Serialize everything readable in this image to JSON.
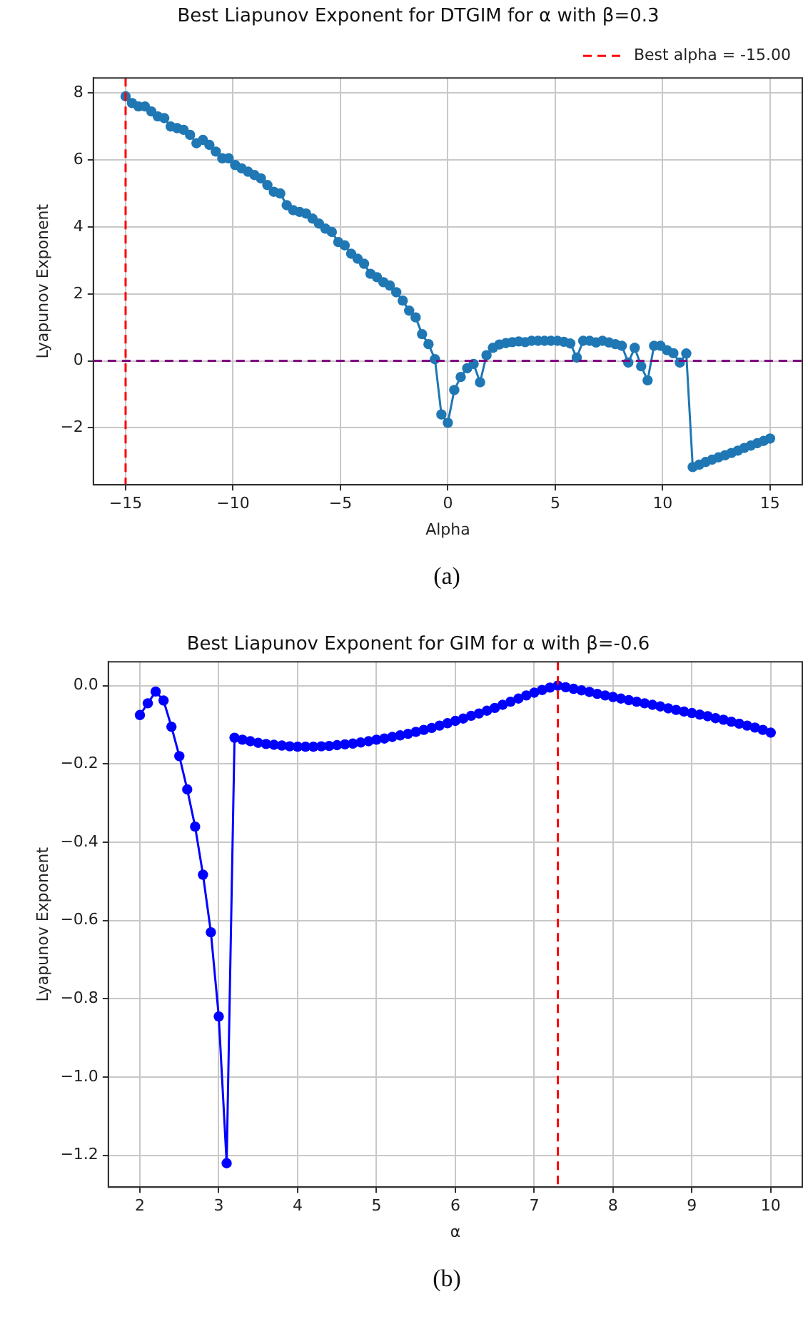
{
  "chart_data": [
    {
      "type": "line",
      "title": "Best Liapunov Exponent for DTGIM for α with β=0.3",
      "xlabel": "Alpha",
      "ylabel": "Lyapunov Exponent",
      "annotations": [
        "(a)"
      ],
      "x": [
        -15,
        -14.7,
        -14.4,
        -14.1,
        -13.8,
        -13.5,
        -13.2,
        -12.9,
        -12.6,
        -12.3,
        -12,
        -11.7,
        -11.4,
        -11.1,
        -10.8,
        -10.5,
        -10.2,
        -9.9,
        -9.6,
        -9.3,
        -9,
        -8.7,
        -8.4,
        -8.1,
        -7.8,
        -7.5,
        -7.2,
        -6.9,
        -6.6,
        -6.3,
        -6,
        -5.7,
        -5.4,
        -5.1,
        -4.8,
        -4.5,
        -4.2,
        -3.9,
        -3.6,
        -3.3,
        -3,
        -2.7,
        -2.4,
        -2.1,
        -1.8,
        -1.5,
        -1.2,
        -0.9,
        -0.6,
        -0.3,
        0,
        0.3,
        0.6,
        0.9,
        1.2,
        1.5,
        1.8,
        2.1,
        2.4,
        2.7,
        3,
        3.3,
        3.6,
        3.9,
        4.2,
        4.5,
        4.8,
        5.1,
        5.4,
        5.7,
        6,
        6.3,
        6.6,
        6.9,
        7.2,
        7.5,
        7.8,
        8.1,
        8.4,
        8.7,
        9,
        9.3,
        9.6,
        9.9,
        10.2,
        10.5,
        10.8,
        11.1,
        11.4,
        11.7,
        12,
        12.3,
        12.6,
        12.9,
        13.2,
        13.5,
        13.8,
        14.1,
        14.4,
        14.7,
        15
      ],
      "series": [
        {
          "color": "#1f77b4",
          "values": [
            7.9,
            7.7,
            7.6,
            7.6,
            7.45,
            7.3,
            7.25,
            7.0,
            6.95,
            6.9,
            6.75,
            6.5,
            6.6,
            6.45,
            6.25,
            6.05,
            6.05,
            5.85,
            5.75,
            5.65,
            5.55,
            5.45,
            5.25,
            5.05,
            5.0,
            4.65,
            4.5,
            4.45,
            4.4,
            4.25,
            4.1,
            3.95,
            3.85,
            3.55,
            3.45,
            3.2,
            3.05,
            2.9,
            2.6,
            2.5,
            2.35,
            2.25,
            2.05,
            1.8,
            1.5,
            1.3,
            0.8,
            0.5,
            0.05,
            -1.6,
            -1.85,
            -0.87,
            -0.48,
            -0.22,
            -0.09,
            -0.64,
            0.17,
            0.39,
            0.49,
            0.53,
            0.56,
            0.58,
            0.56,
            0.6,
            0.6,
            0.6,
            0.6,
            0.6,
            0.57,
            0.52,
            0.1,
            0.6,
            0.6,
            0.55,
            0.6,
            0.55,
            0.5,
            0.45,
            -0.05,
            0.39,
            -0.16,
            -0.58,
            0.45,
            0.45,
            0.32,
            0.23,
            -0.05,
            0.22,
            -3.17,
            -3.1,
            -3.02,
            -2.95,
            -2.88,
            -2.82,
            -2.75,
            -2.68,
            -2.6,
            -2.53,
            -2.46,
            -2.39,
            -2.32
          ]
        }
      ],
      "xlim": [
        -16.5,
        16.5
      ],
      "ylim": [
        -3.7,
        8.45
      ],
      "xticks": [
        {
          "value": -15,
          "label": "−15"
        },
        {
          "value": -10,
          "label": "−10"
        },
        {
          "value": -5,
          "label": "−5"
        },
        0,
        5,
        10,
        15
      ],
      "yticks": [
        {
          "value": -2,
          "label": "−2"
        },
        0,
        2,
        4,
        6,
        8
      ],
      "ref_lines": [
        {
          "axis": "x",
          "value": -15,
          "label": "Best alpha = -15.00",
          "color": "#ff0000",
          "line_style": "dashed"
        },
        {
          "axis": "y",
          "value": 0,
          "color": "#800080",
          "line_style": "dashed"
        }
      ],
      "grid": true,
      "legend": "top right",
      "marker": "circle",
      "line_style": "solid"
    },
    {
      "type": "line",
      "title": "Best Liapunov Exponent for GIM for α with β=-0.6",
      "xlabel": "α",
      "ylabel": "Lyapunov Exponent",
      "annotations": [
        "(b)"
      ],
      "x": [
        2,
        2.1,
        2.2,
        2.3,
        2.4,
        2.5,
        2.6,
        2.7,
        2.8,
        2.9,
        3,
        3.1,
        3.2,
        3.3,
        3.4,
        3.5,
        3.6,
        3.7,
        3.8,
        3.9,
        4,
        4.1,
        4.2,
        4.3,
        4.4,
        4.5,
        4.6,
        4.7,
        4.8,
        4.9,
        5,
        5.1,
        5.2,
        5.3,
        5.4,
        5.5,
        5.6,
        5.7,
        5.8,
        5.9,
        6,
        6.1,
        6.2,
        6.3,
        6.4,
        6.5,
        6.6,
        6.7,
        6.8,
        6.9,
        7,
        7.1,
        7.2,
        7.3,
        7.4,
        7.5,
        7.6,
        7.7,
        7.8,
        7.9,
        8,
        8.1,
        8.2,
        8.3,
        8.4,
        8.5,
        8.6,
        8.7,
        8.8,
        8.9,
        9,
        9.1,
        9.2,
        9.3,
        9.4,
        9.5,
        9.6,
        9.7,
        9.8,
        9.9,
        10
      ],
      "series": [
        {
          "color": "#0000ff",
          "values": [
            -0.075,
            -0.045,
            -0.015,
            -0.038,
            -0.105,
            -0.18,
            -0.265,
            -0.36,
            -0.483,
            -0.63,
            -0.845,
            -1.22,
            -0.133,
            -0.138,
            -0.142,
            -0.146,
            -0.149,
            -0.151,
            -0.153,
            -0.155,
            -0.156,
            -0.156,
            -0.156,
            -0.155,
            -0.154,
            -0.152,
            -0.15,
            -0.148,
            -0.145,
            -0.142,
            -0.138,
            -0.135,
            -0.131,
            -0.127,
            -0.123,
            -0.118,
            -0.113,
            -0.108,
            -0.102,
            -0.096,
            -0.09,
            -0.084,
            -0.077,
            -0.071,
            -0.064,
            -0.057,
            -0.049,
            -0.041,
            -0.033,
            -0.025,
            -0.018,
            -0.011,
            -0.005,
            0.0,
            -0.004,
            -0.008,
            -0.012,
            -0.016,
            -0.021,
            -0.025,
            -0.029,
            -0.033,
            -0.037,
            -0.041,
            -0.045,
            -0.049,
            -0.053,
            -0.058,
            -0.062,
            -0.066,
            -0.07,
            -0.074,
            -0.078,
            -0.083,
            -0.087,
            -0.092,
            -0.097,
            -0.102,
            -0.107,
            -0.113,
            -0.12
          ]
        }
      ],
      "xlim": [
        1.6,
        10.4
      ],
      "ylim": [
        -1.281,
        0.061
      ],
      "xticks": [
        2,
        3,
        4,
        5,
        6,
        7,
        8,
        9,
        10
      ],
      "yticks": [
        {
          "value": 0,
          "label": "0.0"
        },
        {
          "value": -0.2,
          "label": "−0.2"
        },
        {
          "value": -0.4,
          "label": "−0.4"
        },
        {
          "value": -0.6,
          "label": "−0.6"
        },
        {
          "value": -0.8,
          "label": "−0.8"
        },
        {
          "value": -1.0,
          "label": "−1.0"
        },
        {
          "value": -1.2,
          "label": "−1.2"
        }
      ],
      "ref_lines": [
        {
          "axis": "x",
          "value": 7.3,
          "color": "#ff0000",
          "line_style": "dashed"
        }
      ],
      "grid": true,
      "marker": "circle",
      "line_style": "solid"
    }
  ]
}
